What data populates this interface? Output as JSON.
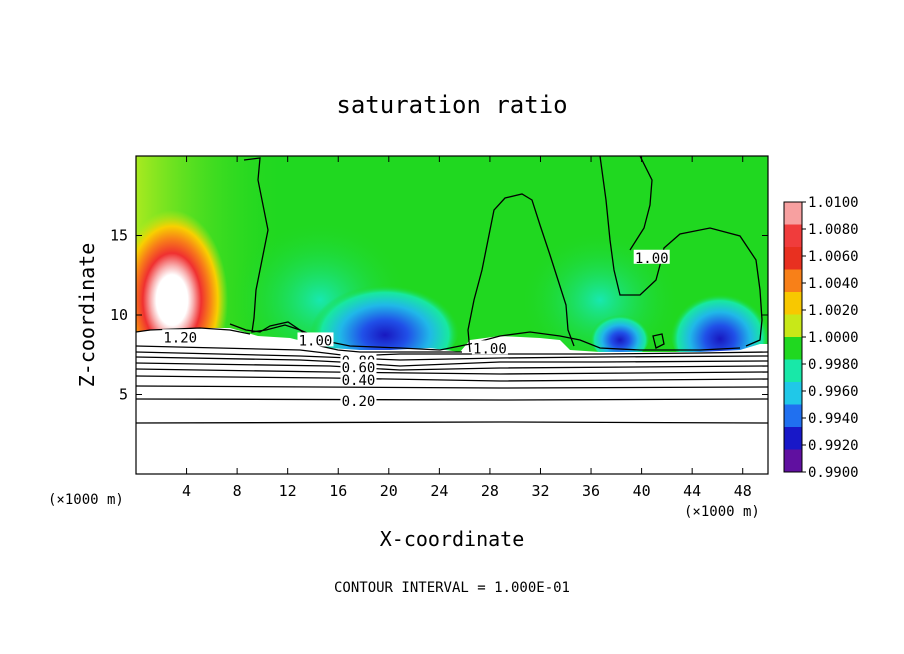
{
  "chart_data": {
    "type": "heatmap",
    "title": "saturation ratio",
    "xlabel": "X-coordinate",
    "ylabel": "Z-coordinate",
    "x_unit_left": "(×1000 m)",
    "x_unit_right": "(×1000 m)",
    "xlim": [
      0,
      50
    ],
    "ylim": [
      0,
      20
    ],
    "x_ticks": [
      4,
      8,
      12,
      16,
      20,
      24,
      28,
      32,
      36,
      40,
      44,
      48
    ],
    "x_tick_labels": [
      "4",
      "8",
      "12",
      "16",
      "20",
      "24",
      "28",
      "32",
      "36",
      "40",
      "44",
      "48"
    ],
    "y_ticks": [
      5,
      10,
      15
    ],
    "y_tick_labels": [
      "5",
      "10",
      "15"
    ],
    "footer": "CONTOUR INTERVAL = 1.000E-01",
    "colorbar": {
      "levels": [
        1.01,
        1.008,
        1.006,
        1.004,
        1.002,
        1.0,
        0.998,
        0.996,
        0.994,
        0.992,
        0.99
      ],
      "labels": [
        "1.0100",
        "1.0080",
        "1.0060",
        "1.0040",
        "1.0020",
        "1.0000",
        "0.9980",
        "0.9960",
        "0.9940",
        "0.9920",
        "0.9900"
      ],
      "colors": [
        "#f7a0a0",
        "#f03c3c",
        "#e83020",
        "#f88018",
        "#f8c800",
        "#c8e818",
        "#20d820",
        "#18e8a8",
        "#20c8e8",
        "#2070f0",
        "#1818c8",
        "#6010a0"
      ]
    },
    "contour_interval": 0.1,
    "contour_labels": [
      {
        "text": "1.20",
        "x": 3.5,
        "z": 8.6
      },
      {
        "text": "1.00",
        "x": 14.2,
        "z": 8.4
      },
      {
        "text": "0.80",
        "x": 17.6,
        "z": 7.1
      },
      {
        "text": "0.60",
        "x": 17.6,
        "z": 6.7
      },
      {
        "text": "0.40",
        "x": 17.6,
        "z": 5.9
      },
      {
        "text": "0.20",
        "x": 17.6,
        "z": 4.6
      },
      {
        "text": "1.00",
        "x": 28.0,
        "z": 7.9
      },
      {
        "text": "1.00",
        "x": 40.8,
        "z": 13.6
      }
    ],
    "grid": false,
    "legend": "right"
  }
}
